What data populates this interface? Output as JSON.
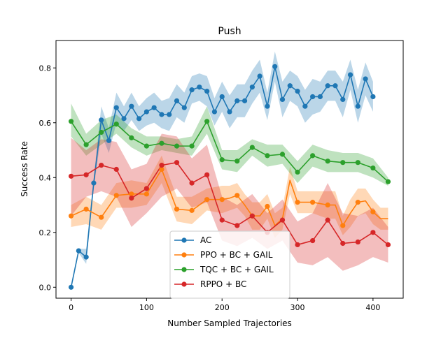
{
  "chart_data": {
    "type": "line",
    "title": "Push",
    "xlabel": "Number Sampled Trajectories",
    "ylabel": "Success Rate",
    "xlim": [
      -20,
      440
    ],
    "ylim": [
      -0.04,
      0.9
    ],
    "xticks": [
      0,
      100,
      200,
      300,
      400
    ],
    "yticks": [
      0.0,
      0.2,
      0.4,
      0.6,
      0.8
    ],
    "xtick_labels": [
      "0",
      "100",
      "200",
      "300",
      "400"
    ],
    "ytick_labels": [
      "0.0",
      "0.2",
      "0.4",
      "0.6",
      "0.8"
    ],
    "legend_position": "bottom-center",
    "grid": false,
    "series": [
      {
        "name": "AC",
        "color": "#1f77b4",
        "x": [
          0,
          10,
          20,
          30,
          40,
          50,
          60,
          70,
          80,
          90,
          100,
          110,
          120,
          130,
          140,
          150,
          160,
          170,
          180,
          190,
          200,
          210,
          220,
          230,
          240,
          250,
          260,
          270,
          280,
          290,
          300,
          310,
          320,
          330,
          340,
          350,
          360,
          370,
          380,
          390,
          400
        ],
        "y": [
          0.0,
          0.133,
          0.11,
          0.38,
          0.61,
          0.535,
          0.655,
          0.615,
          0.66,
          0.615,
          0.64,
          0.655,
          0.63,
          0.63,
          0.68,
          0.655,
          0.72,
          0.73,
          0.715,
          0.64,
          0.695,
          0.64,
          0.68,
          0.68,
          0.73,
          0.77,
          0.66,
          0.805,
          0.685,
          0.735,
          0.715,
          0.66,
          0.695,
          0.695,
          0.735,
          0.735,
          0.685,
          0.775,
          0.66,
          0.76,
          0.695
        ],
        "lower": [
          0.0,
          0.125,
          0.085,
          0.36,
          0.56,
          0.49,
          0.6,
          0.57,
          0.61,
          0.57,
          0.59,
          0.6,
          0.58,
          0.57,
          0.62,
          0.6,
          0.67,
          0.68,
          0.66,
          0.59,
          0.64,
          0.58,
          0.62,
          0.62,
          0.67,
          0.71,
          0.61,
          0.75,
          0.62,
          0.68,
          0.66,
          0.6,
          0.63,
          0.64,
          0.68,
          0.68,
          0.62,
          0.72,
          0.6,
          0.7,
          0.64
        ],
        "upper": [
          0.0,
          0.14,
          0.14,
          0.4,
          0.66,
          0.58,
          0.71,
          0.66,
          0.71,
          0.66,
          0.69,
          0.71,
          0.68,
          0.69,
          0.74,
          0.71,
          0.77,
          0.78,
          0.77,
          0.69,
          0.75,
          0.7,
          0.74,
          0.74,
          0.79,
          0.83,
          0.71,
          0.86,
          0.75,
          0.79,
          0.77,
          0.72,
          0.76,
          0.75,
          0.79,
          0.79,
          0.75,
          0.83,
          0.72,
          0.82,
          0.75
        ]
      },
      {
        "name": "PPO + BC + GAIL",
        "color": "#ff7f0e",
        "x": [
          0,
          20,
          40,
          60,
          80,
          100,
          120,
          140,
          160,
          180,
          200,
          210,
          220,
          230,
          240,
          250,
          260,
          270,
          280,
          290,
          300,
          310,
          320,
          330,
          340,
          350,
          360,
          370,
          380,
          390,
          400,
          410,
          420
        ],
        "y": [
          0.26,
          0.285,
          0.255,
          0.335,
          0.34,
          0.34,
          0.43,
          0.285,
          0.28,
          0.32,
          0.32,
          0.325,
          0.335,
          0.3,
          0.26,
          0.26,
          0.295,
          0.225,
          0.25,
          0.39,
          0.31,
          0.31,
          0.31,
          0.305,
          0.3,
          0.3,
          0.225,
          0.27,
          0.31,
          0.315,
          0.275,
          0.25,
          0.25
        ],
        "lower": [
          0.22,
          0.23,
          0.21,
          0.29,
          0.29,
          0.3,
          0.38,
          0.24,
          0.23,
          0.28,
          0.27,
          0.28,
          0.29,
          0.26,
          0.21,
          0.21,
          0.25,
          0.18,
          0.21,
          0.34,
          0.27,
          0.27,
          0.27,
          0.26,
          0.25,
          0.25,
          0.19,
          0.22,
          0.26,
          0.27,
          0.23,
          0.21,
          0.21
        ],
        "upper": [
          0.3,
          0.33,
          0.3,
          0.38,
          0.39,
          0.38,
          0.48,
          0.33,
          0.33,
          0.36,
          0.37,
          0.37,
          0.38,
          0.34,
          0.31,
          0.31,
          0.34,
          0.27,
          0.29,
          0.44,
          0.35,
          0.35,
          0.35,
          0.35,
          0.35,
          0.35,
          0.26,
          0.32,
          0.36,
          0.36,
          0.32,
          0.29,
          0.29
        ],
        "markers_x": [
          0,
          20,
          40,
          60,
          80,
          100,
          120,
          140,
          160,
          180,
          200,
          220,
          240,
          260,
          300,
          320,
          340,
          360,
          380,
          400
        ]
      },
      {
        "name": "TQC + BC + GAIL",
        "color": "#2ca02c",
        "x": [
          0,
          20,
          40,
          60,
          80,
          100,
          120,
          140,
          160,
          180,
          200,
          220,
          240,
          260,
          280,
          300,
          320,
          340,
          360,
          380,
          400,
          420
        ],
        "y": [
          0.605,
          0.52,
          0.565,
          0.595,
          0.545,
          0.515,
          0.525,
          0.515,
          0.515,
          0.605,
          0.465,
          0.46,
          0.51,
          0.48,
          0.485,
          0.42,
          0.48,
          0.46,
          0.455,
          0.455,
          0.435,
          0.385
        ],
        "lower": [
          0.55,
          0.48,
          0.52,
          0.56,
          0.51,
          0.48,
          0.5,
          0.49,
          0.48,
          0.56,
          0.43,
          0.42,
          0.48,
          0.44,
          0.45,
          0.38,
          0.44,
          0.42,
          0.42,
          0.42,
          0.4,
          0.37
        ],
        "upper": [
          0.67,
          0.56,
          0.61,
          0.63,
          0.58,
          0.55,
          0.55,
          0.54,
          0.55,
          0.66,
          0.5,
          0.5,
          0.54,
          0.52,
          0.52,
          0.46,
          0.52,
          0.5,
          0.49,
          0.49,
          0.47,
          0.4
        ]
      },
      {
        "name": "RPPO + BC",
        "color": "#d62728",
        "x": [
          0,
          20,
          40,
          60,
          80,
          100,
          120,
          140,
          160,
          180,
          200,
          220,
          240,
          260,
          280,
          300,
          320,
          340,
          360,
          380,
          400,
          420
        ],
        "y": [
          0.405,
          0.41,
          0.445,
          0.43,
          0.325,
          0.36,
          0.445,
          0.455,
          0.38,
          0.41,
          0.245,
          0.225,
          0.26,
          0.2,
          0.245,
          0.155,
          0.17,
          0.245,
          0.16,
          0.165,
          0.2,
          0.155
        ],
        "lower": [
          0.26,
          0.33,
          0.35,
          0.33,
          0.22,
          0.27,
          0.33,
          0.36,
          0.29,
          0.31,
          0.17,
          0.15,
          0.18,
          0.14,
          0.17,
          0.09,
          0.08,
          0.11,
          0.06,
          0.08,
          0.11,
          0.09
        ],
        "upper": [
          0.545,
          0.5,
          0.54,
          0.53,
          0.43,
          0.45,
          0.56,
          0.55,
          0.47,
          0.52,
          0.33,
          0.3,
          0.34,
          0.27,
          0.32,
          0.24,
          0.27,
          0.38,
          0.27,
          0.26,
          0.29,
          0.22
        ]
      }
    ]
  }
}
